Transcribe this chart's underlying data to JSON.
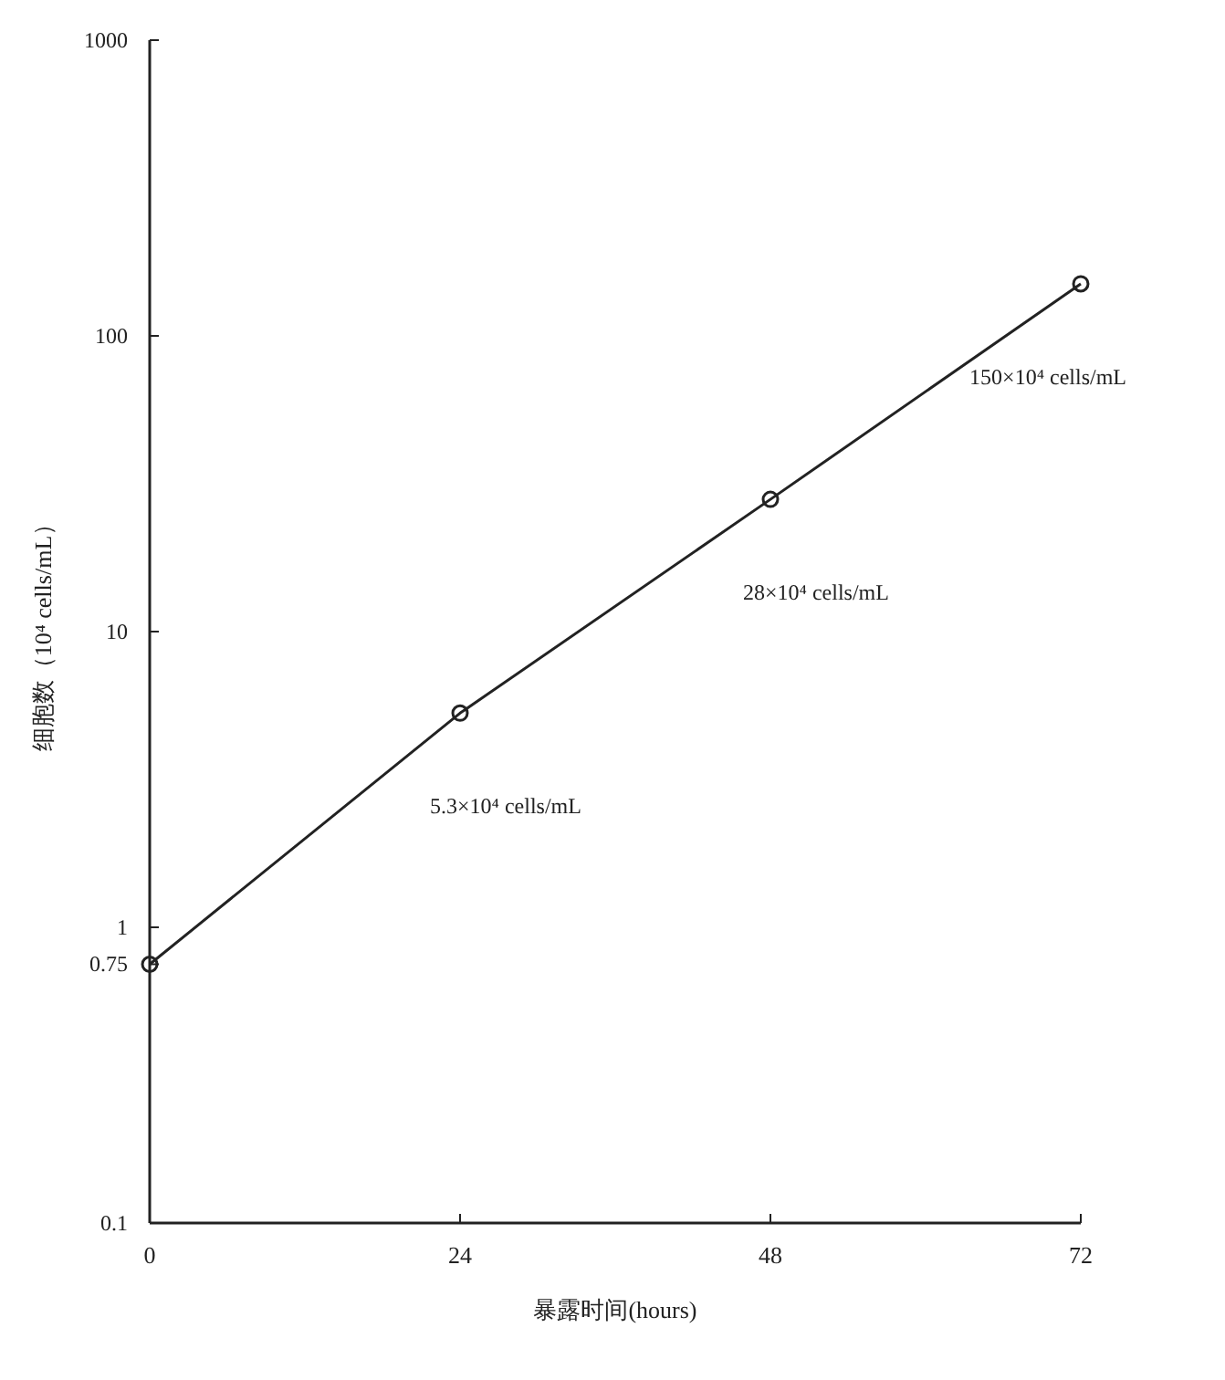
{
  "chart_data": {
    "type": "line",
    "xlabel": "暴露时间(hours)",
    "ylabel": "细胞数（10⁴ cells/mL）",
    "x": [
      0,
      24,
      48,
      72
    ],
    "series": [
      {
        "color": "#222222",
        "values": [
          0.75,
          5.3,
          28,
          150
        ]
      }
    ],
    "marker": "circle",
    "line_style": "solid",
    "log": "y",
    "grid": false,
    "xlim": [
      0,
      72
    ],
    "xticks": [
      0,
      24,
      48,
      72
    ],
    "ylim": [
      0.1,
      1000
    ],
    "yticks": [
      0.1,
      0.75,
      1,
      10,
      100,
      1000
    ],
    "annotations": [
      "5.3×10⁴ cells/mL",
      "28×10⁴ cells/mL",
      "150×10⁴ cells/mL"
    ]
  }
}
